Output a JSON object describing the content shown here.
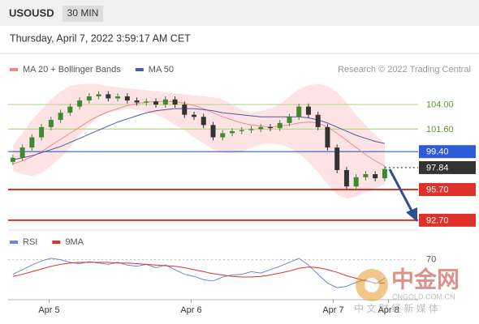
{
  "chart_data": [
    {
      "type": "candlestick",
      "title": "USOUSD",
      "timeframe": "30 MIN",
      "subtitle": "Thursday, April 7, 2022 3:59:17 AM CET",
      "source": "Research © 2022 Trading Central",
      "open": [
        98.4,
        98.8,
        99.8,
        100.8,
        101.8,
        102.5,
        103.2,
        103.8,
        104.4,
        104.8,
        105.0,
        104.6,
        104.8,
        104.4,
        104.2,
        104.3,
        104.0,
        104.5,
        104.0,
        103.0,
        102.8,
        102.0,
        100.8,
        101.2,
        101.4,
        101.5,
        101.6,
        101.8,
        101.7,
        102.2,
        102.8,
        103.8,
        103.0,
        101.8,
        99.8,
        97.6,
        96.0,
        96.9,
        97.2,
        96.8
      ],
      "high": [
        99.1,
        100.1,
        101.1,
        102.1,
        102.8,
        103.5,
        104.1,
        104.7,
        105.1,
        105.3,
        105.3,
        105.1,
        105.1,
        104.7,
        104.6,
        104.6,
        104.8,
        104.8,
        104.3,
        103.3,
        103.1,
        102.3,
        101.5,
        101.7,
        101.8,
        101.9,
        102.1,
        102.1,
        102.5,
        103.1,
        104.1,
        104.1,
        103.3,
        102.1,
        100.1,
        97.9,
        97.2,
        97.5,
        97.5,
        98.0
      ],
      "low": [
        98.1,
        98.5,
        99.5,
        100.5,
        101.5,
        102.2,
        102.9,
        103.5,
        104.1,
        104.5,
        104.3,
        104.3,
        104.1,
        103.9,
        103.9,
        103.7,
        103.7,
        103.7,
        102.7,
        102.5,
        101.7,
        100.5,
        100.5,
        100.9,
        101.1,
        101.2,
        101.3,
        101.4,
        101.4,
        101.9,
        102.5,
        102.7,
        101.5,
        99.5,
        97.3,
        95.7,
        95.7,
        96.6,
        96.5,
        96.5
      ],
      "close": [
        98.8,
        99.8,
        100.8,
        101.8,
        102.5,
        103.2,
        103.8,
        104.4,
        104.8,
        105.0,
        104.6,
        104.8,
        104.4,
        104.2,
        104.3,
        104.0,
        104.5,
        104.0,
        103.0,
        102.8,
        102.0,
        100.8,
        101.2,
        101.4,
        101.5,
        101.6,
        101.8,
        101.7,
        102.2,
        102.8,
        103.8,
        103.0,
        101.8,
        99.8,
        97.6,
        96.0,
        96.9,
        97.2,
        96.8,
        97.7
      ],
      "up_color": "#3e8a2e",
      "down_color": "#333333",
      "series": [
        {
          "name": "MA 20 + Bollinger Bands",
          "color": "#f08a8a",
          "band_color": "#fde3e3",
          "values": [
            98.2,
            98.5,
            98.9,
            99.4,
            100.0,
            100.6,
            101.2,
            101.8,
            102.4,
            102.9,
            103.3,
            103.6,
            103.9,
            104.1,
            104.2,
            104.3,
            104.3,
            104.3,
            104.1,
            103.9,
            103.6,
            103.2,
            102.8,
            102.5,
            102.2,
            102.0,
            101.9,
            101.8,
            101.9,
            102.0,
            102.2,
            102.3,
            102.2,
            101.8,
            101.2,
            100.5,
            99.8,
            99.1,
            98.5,
            98.0
          ],
          "upper": [
            100.0,
            101.2,
            102.5,
            103.5,
            104.5,
            105.3,
            105.8,
            106.0,
            106.0,
            106.0,
            105.8,
            105.7,
            105.6,
            105.5,
            105.4,
            105.3,
            105.2,
            105.1,
            105.0,
            104.9,
            104.8,
            104.7,
            104.5,
            104.0,
            103.5,
            103.2,
            103.4,
            103.6,
            104.0,
            104.8,
            105.5,
            105.9,
            106.0,
            105.8,
            105.2,
            104.2,
            103.0,
            102.0,
            101.0,
            100.2
          ],
          "lower": [
            97.5,
            97.2,
            97.0,
            97.3,
            98.0,
            98.8,
            99.8,
            101.0,
            102.0,
            102.8,
            103.2,
            103.4,
            103.6,
            103.5,
            103.3,
            103.0,
            102.6,
            102.0,
            101.5,
            100.8,
            100.2,
            99.6,
            99.3,
            99.2,
            99.4,
            99.8,
            100.1,
            100.2,
            100.1,
            99.8,
            99.2,
            98.4,
            97.4,
            96.2,
            95.2,
            94.8,
            95.0,
            95.4,
            95.8,
            96.2
          ]
        },
        {
          "name": "MA 50",
          "color": "#4a5aa8",
          "values": [
            98.6,
            98.8,
            99.0,
            99.3,
            99.6,
            99.9,
            100.3,
            100.7,
            101.1,
            101.5,
            101.9,
            102.3,
            102.6,
            102.9,
            103.2,
            103.4,
            103.5,
            103.6,
            103.6,
            103.6,
            103.5,
            103.4,
            103.2,
            103.1,
            103.0,
            102.9,
            102.8,
            102.8,
            102.8,
            102.8,
            102.8,
            102.7,
            102.5,
            102.2,
            101.8,
            101.4,
            101.0,
            100.7,
            100.4,
            100.2
          ]
        }
      ],
      "levels": [
        {
          "value": 104,
          "label": "104.00",
          "color": "#b9d68f",
          "text_color": "#5a9a2a",
          "boxed": false
        },
        {
          "value": 101.6,
          "label": "101.60",
          "color": "#b9d68f",
          "text_color": "#5a9a2a",
          "boxed": false
        },
        {
          "value": 99.4,
          "label": "99.40",
          "color": "#2f5bd8",
          "text_color": "#ffffff",
          "boxed": true
        },
        {
          "value": 97.84,
          "color": "#333333",
          "text_color": "#ffffff",
          "boxed": true,
          "dotted": true
        },
        {
          "value": 95.7,
          "label": "95.70",
          "color": "#e0302a",
          "text_color": "#ffffff",
          "boxed": true
        },
        {
          "value": 92.7,
          "label": "92.70",
          "color": "#e0302a",
          "text_color": "#ffffff",
          "boxed": true
        }
      ],
      "ylim": [
        91.9,
        106.3
      ],
      "xlim": [
        -0.5,
        42.5
      ]
    },
    {
      "type": "line",
      "series": [
        {
          "name": "RSI",
          "color": "#6a86d8",
          "values": [
            48,
            55,
            62,
            68,
            72,
            70,
            66,
            64,
            67,
            65,
            63,
            66,
            62,
            60,
            63,
            58,
            62,
            55,
            48,
            45,
            40,
            38,
            44,
            47,
            48,
            52,
            50,
            55,
            60,
            66,
            72,
            62,
            48,
            35,
            28,
            30,
            36,
            40,
            34,
            42
          ]
        },
        {
          "name": "9MA",
          "color": "#e0302a",
          "values": [
            45,
            48,
            52,
            56,
            60,
            63,
            65,
            66,
            66,
            66,
            66,
            65,
            65,
            64,
            63,
            62,
            61,
            60,
            58,
            55,
            52,
            49,
            47,
            45,
            44,
            44,
            45,
            47,
            50,
            53,
            57,
            59,
            58,
            55,
            51,
            46,
            42,
            38,
            35,
            35
          ]
        }
      ],
      "ylim": [
        10,
        95
      ],
      "yticks": [
        70
      ],
      "xlim": [
        -0.5,
        42.5
      ],
      "xticks": [
        {
          "value": 3.8,
          "label": "Apr 5"
        },
        {
          "value": 18.7,
          "label": "Apr 6"
        },
        {
          "value": 33.6,
          "label": "Apr 7"
        },
        {
          "value": 39.4,
          "label": "Apr 8"
        }
      ]
    }
  ],
  "watermark": {
    "name": "中金网",
    "url": "CNGOLD.COM.CN",
    "tagline": "中 文 财 经 新 媒 体"
  }
}
